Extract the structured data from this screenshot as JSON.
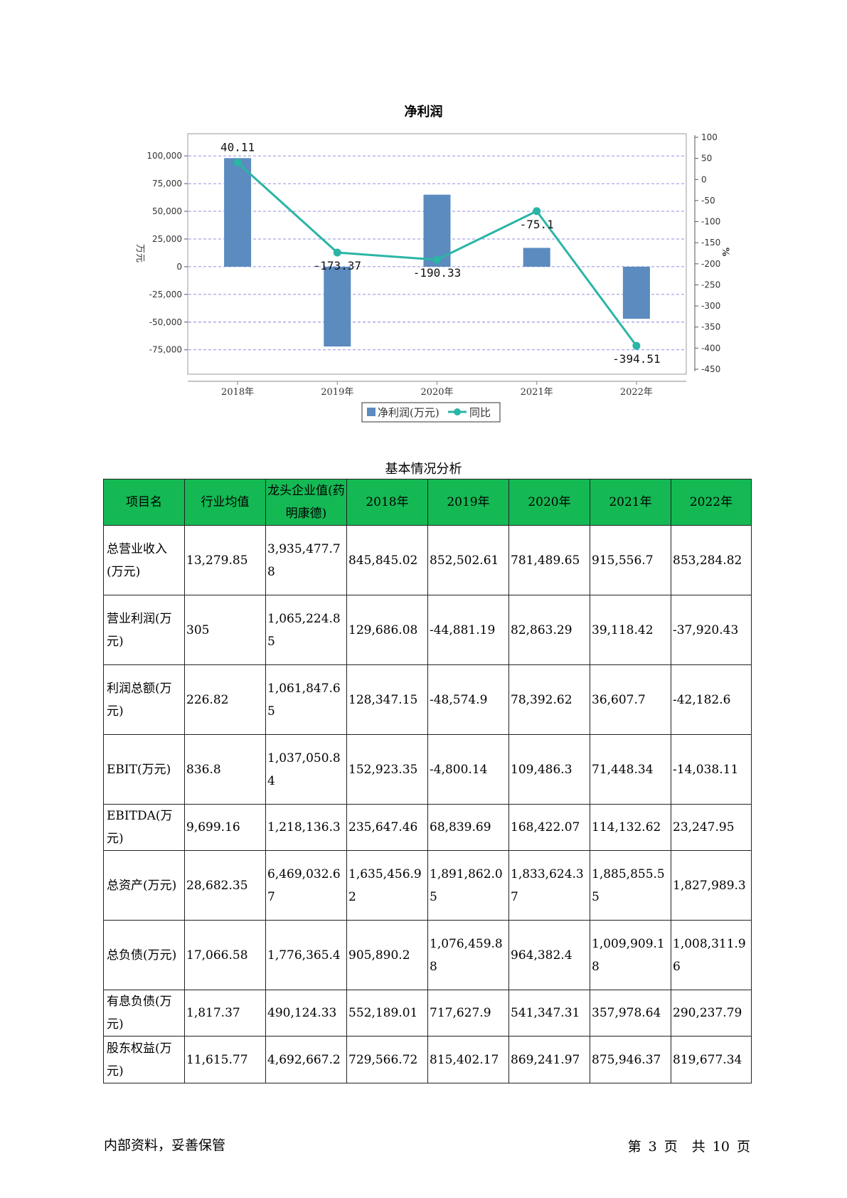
{
  "chart_data": {
    "type": "bar",
    "title": "净利润",
    "categories": [
      "2018年",
      "2019年",
      "2020年",
      "2021年",
      "2022年"
    ],
    "series": [
      {
        "name": "净利润(万元)",
        "type": "bar",
        "axis": "left",
        "color": "#5b8bbf",
        "values": [
          98000,
          -72000,
          65000,
          17000,
          -47000
        ]
      },
      {
        "name": "同比",
        "type": "line",
        "axis": "right",
        "color": "#2ab5a5",
        "values": [
          40.11,
          -173.37,
          -190.33,
          -75.1,
          -394.51
        ],
        "labels": [
          "40.11",
          "-173.37",
          "-190.33",
          "-75.1",
          "-394.51"
        ]
      }
    ],
    "ylabel": "万元",
    "y2label": "%",
    "ylim": [
      -97000,
      120000
    ],
    "y2lim": [
      -450,
      100
    ],
    "yticks": [
      100000,
      75000,
      50000,
      25000,
      0,
      -25000,
      -50000,
      -75000
    ],
    "ytick_labels": [
      "100,000",
      "75,000",
      "50,000",
      "25,000",
      "0",
      "-25,000",
      "-50,000",
      "-75,000"
    ],
    "y2ticks": [
      100,
      50,
      0,
      -50,
      -100,
      -150,
      -200,
      -250,
      -300,
      -350,
      -400,
      -450
    ],
    "y2tick_labels": [
      "100",
      "50",
      "0",
      "-50",
      "-100",
      "-150",
      "-200",
      "-250",
      "-300",
      "-350",
      "-400",
      "-450"
    ],
    "grid": true,
    "legend": "bottom"
  },
  "table": {
    "caption": "基本情况分析",
    "headers": [
      "项目名",
      "行业均值",
      "龙头企业值(药明康德)",
      "2018年",
      "2019年",
      "2020年",
      "2021年",
      "2022年"
    ],
    "rows": [
      [
        "总营业收入(万元)",
        "13,279.85",
        "3,935,477.78",
        "845,845.02",
        "852,502.61",
        "781,489.65",
        "915,556.7",
        "853,284.82"
      ],
      [
        "营业利润(万元)",
        "305",
        "1,065,224.85",
        "129,686.08",
        "-44,881.19",
        "82,863.29",
        "39,118.42",
        "-37,920.43"
      ],
      [
        "利润总额(万元)",
        "226.82",
        "1,061,847.65",
        "128,347.15",
        "-48,574.9",
        "78,392.62",
        "36,607.7",
        "-42,182.6"
      ],
      [
        "EBIT(万元)",
        "836.8",
        "1,037,050.84",
        "152,923.35",
        "-4,800.14",
        "109,486.3",
        "71,448.34",
        "-14,038.11"
      ],
      [
        "EBITDA(万元)",
        "9,699.16",
        "1,218,136.3",
        "235,647.46",
        "68,839.69",
        "168,422.07",
        "114,132.62",
        "23,247.95"
      ],
      [
        "总资产(万元)",
        "28,682.35",
        "6,469,032.67",
        "1,635,456.92",
        "1,891,862.05",
        "1,833,624.37",
        "1,885,855.55",
        "1,827,989.3"
      ],
      [
        "总负债(万元)",
        "17,066.58",
        "1,776,365.4",
        "905,890.2",
        "1,076,459.88",
        "964,382.4",
        "1,009,909.18",
        "1,008,311.96"
      ],
      [
        "有息负债(万元)",
        "1,817.37",
        "490,124.33",
        "552,189.01",
        "717,627.9",
        "541,347.31",
        "357,978.64",
        "290,237.79"
      ],
      [
        "股东权益(万元)",
        "11,615.77",
        "4,692,667.2",
        "729,566.72",
        "815,402.17",
        "869,241.97",
        "875,946.37",
        "819,677.34"
      ]
    ]
  },
  "footer": {
    "left": "内部资料，妥善保管",
    "page_prefix": "第",
    "page_no": "3",
    "page_mid": "页",
    "total_prefix": "共",
    "total": "10",
    "page_suffix": "页"
  }
}
